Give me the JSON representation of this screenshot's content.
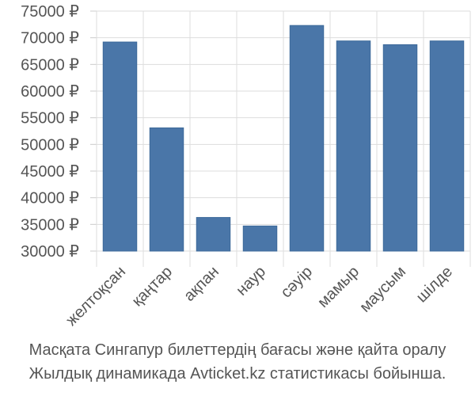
{
  "chart_data": {
    "type": "bar",
    "categories": [
      "желтоқсан",
      "қаңтар",
      "ақпан",
      "наур",
      "сәуір",
      "мамыр",
      "маусым",
      "шілде"
    ],
    "values": [
      69200,
      53100,
      36300,
      34700,
      72300,
      69400,
      68700,
      69400
    ],
    "ylim": [
      30000,
      75000
    ],
    "yticks": [
      30000,
      35000,
      40000,
      45000,
      50000,
      55000,
      60000,
      65000,
      70000,
      75000
    ],
    "ytick_labels": [
      "30000 ₽",
      "35000 ₽",
      "40000 ₽",
      "45000 ₽",
      "50000 ₽",
      "55000 ₽",
      "60000 ₽",
      "65000 ₽",
      "70000 ₽",
      "75000 ₽"
    ],
    "grid": true,
    "bar_color": "#4a76a8"
  },
  "caption": {
    "line1": "Масқата Сингапур билеттердің бағасы және қайта оралу",
    "line2": "Жылдық динамикада Avticket.kz статистикасы бойынша."
  }
}
